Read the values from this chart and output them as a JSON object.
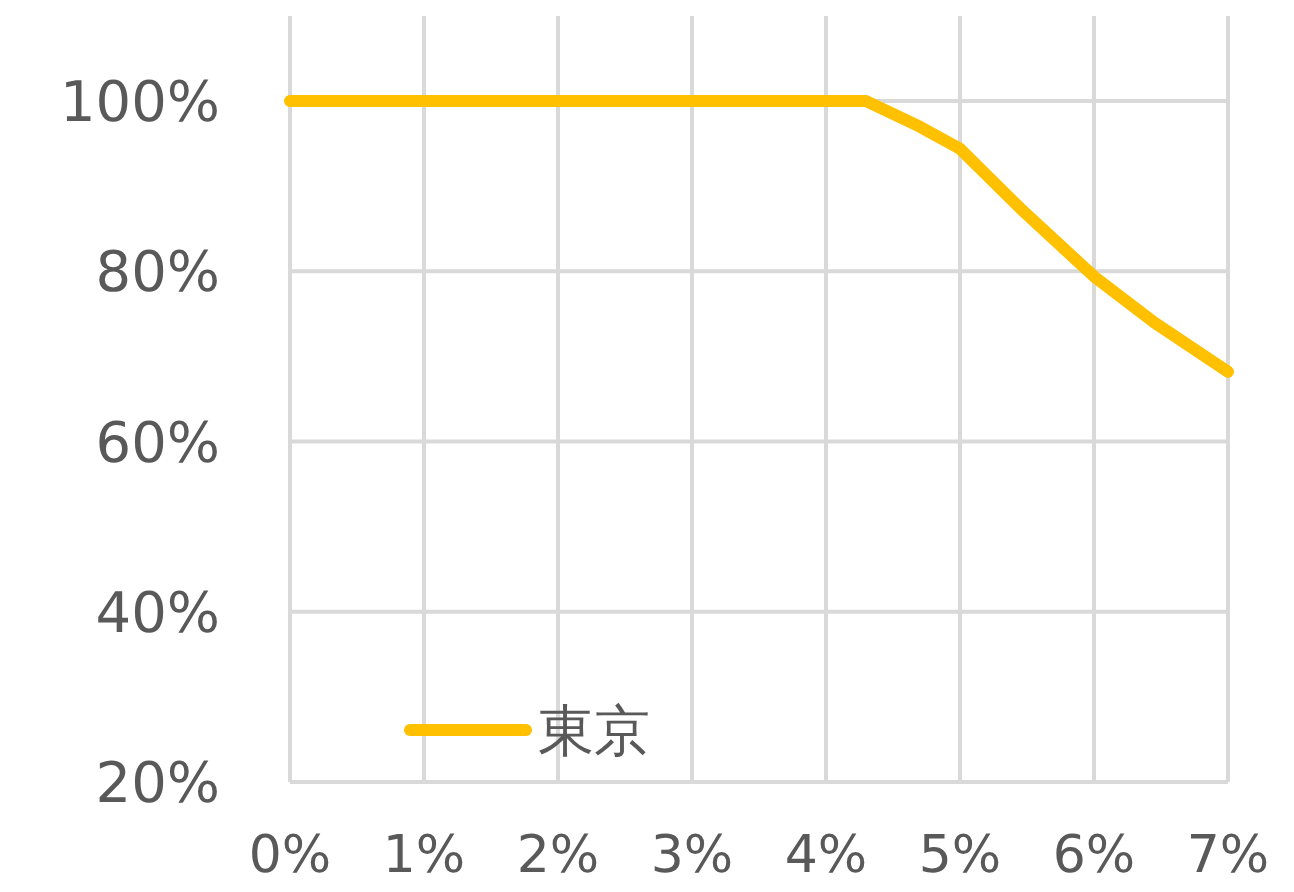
{
  "chart_data": {
    "type": "line",
    "series": [
      {
        "name": "東京",
        "color": "#ffc000",
        "x": [
          0,
          1,
          2,
          3,
          4,
          4.3,
          4.7,
          5.0,
          5.45,
          6.0,
          6.45,
          7.0
        ],
        "values": [
          100,
          100,
          100,
          100,
          100,
          100,
          97,
          94.4,
          87.4,
          79.4,
          74,
          68.2
        ]
      }
    ],
    "xlim": [
      0,
      7
    ],
    "ylim": [
      20,
      110
    ],
    "xticks": [
      {
        "value": 0,
        "label": "0%"
      },
      {
        "value": 1,
        "label": "1%"
      },
      {
        "value": 2,
        "label": "2%"
      },
      {
        "value": 3,
        "label": "3%"
      },
      {
        "value": 4,
        "label": "4%"
      },
      {
        "value": 5,
        "label": "5%"
      },
      {
        "value": 6,
        "label": "6%"
      },
      {
        "value": 7,
        "label": "7%"
      }
    ],
    "yticks": [
      {
        "value": 20,
        "label": "20%"
      },
      {
        "value": 40,
        "label": "40%"
      },
      {
        "value": 60,
        "label": "60%"
      },
      {
        "value": 80,
        "label": "80%"
      },
      {
        "value": 100,
        "label": "100%"
      }
    ],
    "grid": true,
    "legend": "bottom left",
    "line_style": "solid"
  }
}
